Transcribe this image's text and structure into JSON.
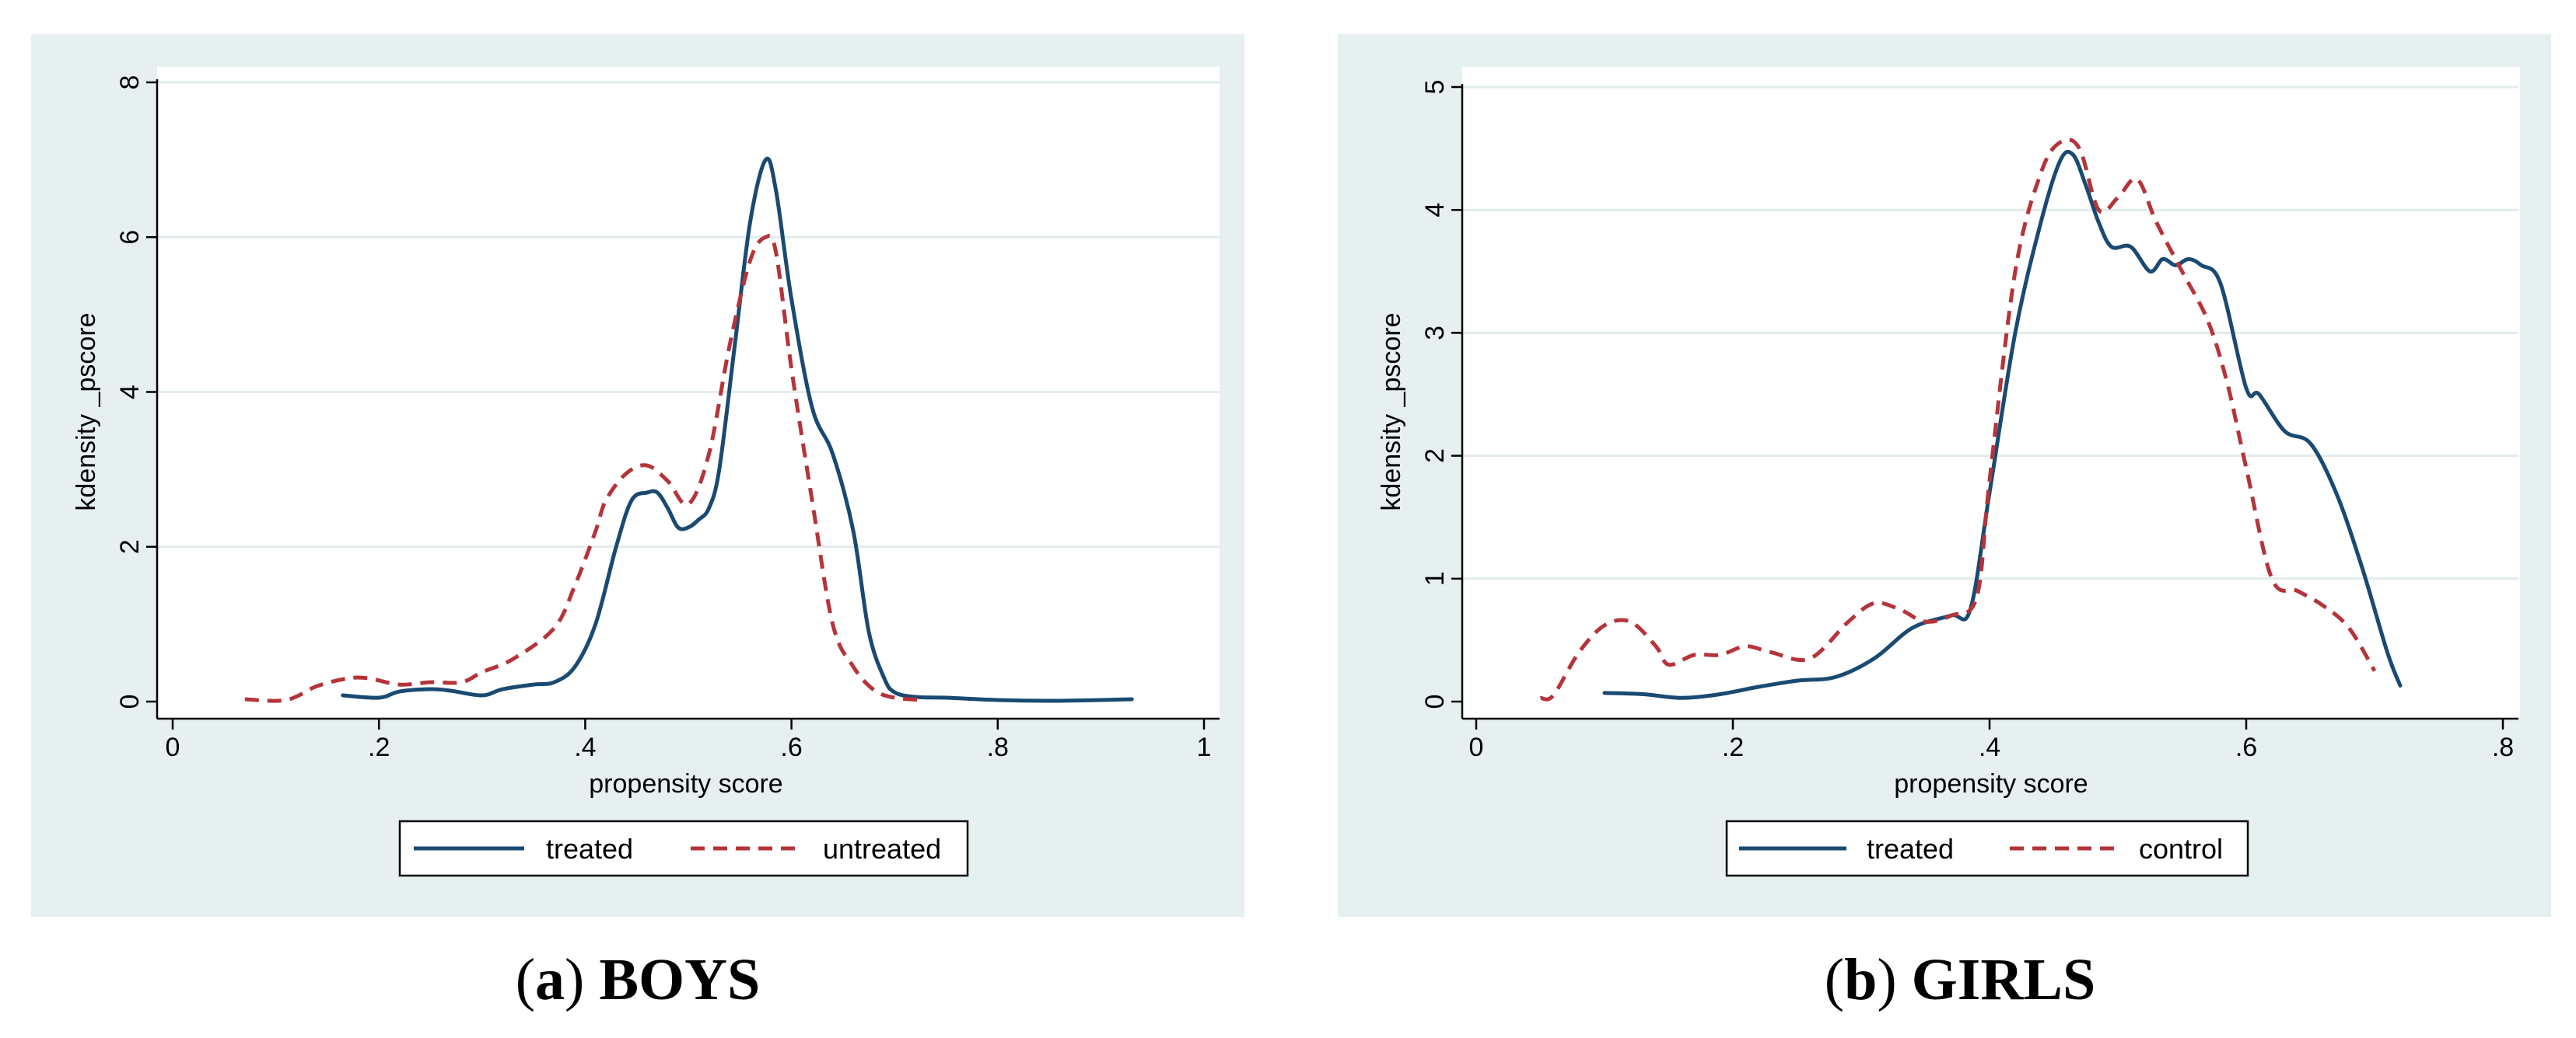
{
  "colors": {
    "treated": "#1a4a72",
    "untreated": "#b5343a",
    "panel_bg": "#e6f0f0"
  },
  "chart_data": [
    {
      "type": "line",
      "panel_label": "a",
      "caption": "BOYS",
      "xlabel": "propensity score",
      "ylabel": "kdensity _pscore",
      "xlim": [
        0,
        1
      ],
      "ylim": [
        0,
        8
      ],
      "xticks": [
        0,
        0.2,
        0.4,
        0.6,
        0.8,
        1
      ],
      "xtick_labels": [
        "0",
        ".2",
        ".4",
        ".6",
        ".8",
        "1"
      ],
      "yticks": [
        0,
        2,
        4,
        6,
        8
      ],
      "ytick_labels": [
        "0",
        "2",
        "4",
        "6",
        "8"
      ],
      "legend_position": "bottom",
      "series": [
        {
          "name": "treated",
          "style": "solid",
          "x": [
            0.165,
            0.2,
            0.22,
            0.25,
            0.27,
            0.3,
            0.32,
            0.35,
            0.37,
            0.39,
            0.41,
            0.43,
            0.445,
            0.46,
            0.47,
            0.48,
            0.49,
            0.5,
            0.51,
            0.52,
            0.53,
            0.545,
            0.56,
            0.575,
            0.585,
            0.6,
            0.62,
            0.64,
            0.66,
            0.675,
            0.69,
            0.7,
            0.72,
            0.75,
            0.8,
            0.85,
            0.9,
            0.93
          ],
          "y": [
            0.08,
            0.05,
            0.13,
            0.16,
            0.14,
            0.08,
            0.16,
            0.22,
            0.25,
            0.45,
            1.0,
            2.0,
            2.6,
            2.7,
            2.7,
            2.5,
            2.25,
            2.25,
            2.35,
            2.5,
            3.0,
            4.6,
            6.2,
            7.0,
            6.6,
            5.2,
            3.8,
            3.2,
            2.2,
            0.9,
            0.3,
            0.12,
            0.06,
            0.05,
            0.02,
            0.01,
            0.02,
            0.03
          ]
        },
        {
          "name": "untreated",
          "style": "dashed",
          "x": [
            0.07,
            0.11,
            0.14,
            0.17,
            0.19,
            0.22,
            0.25,
            0.28,
            0.3,
            0.33,
            0.37,
            0.39,
            0.41,
            0.42,
            0.44,
            0.46,
            0.48,
            0.5,
            0.52,
            0.54,
            0.56,
            0.575,
            0.585,
            0.6,
            0.62,
            0.64,
            0.66,
            0.68,
            0.7,
            0.73
          ],
          "y": [
            0.03,
            0.02,
            0.2,
            0.3,
            0.3,
            0.22,
            0.25,
            0.25,
            0.38,
            0.55,
            0.95,
            1.5,
            2.2,
            2.6,
            2.95,
            3.05,
            2.85,
            2.55,
            3.2,
            4.6,
            5.7,
            6.0,
            5.8,
            4.3,
            2.6,
            1.0,
            0.45,
            0.15,
            0.05,
            0.02
          ]
        }
      ]
    },
    {
      "type": "line",
      "panel_label": "b",
      "caption": "GIRLS",
      "xlabel": "propensity score",
      "ylabel": "kdensity _pscore",
      "xlim": [
        0,
        0.8
      ],
      "ylim": [
        0,
        5
      ],
      "xticks": [
        0,
        0.2,
        0.4,
        0.6,
        0.8
      ],
      "xtick_labels": [
        "0",
        ".2",
        ".4",
        ".6",
        ".8"
      ],
      "yticks": [
        0,
        1,
        2,
        3,
        4,
        5
      ],
      "ytick_labels": [
        "0",
        "1",
        "2",
        "3",
        "4",
        "5"
      ],
      "legend_position": "bottom",
      "series": [
        {
          "name": "treated",
          "style": "solid",
          "x": [
            0.1,
            0.13,
            0.16,
            0.19,
            0.22,
            0.25,
            0.28,
            0.31,
            0.34,
            0.37,
            0.385,
            0.4,
            0.42,
            0.44,
            0.455,
            0.465,
            0.475,
            0.485,
            0.495,
            0.51,
            0.525,
            0.535,
            0.545,
            0.555,
            0.565,
            0.58,
            0.6,
            0.61,
            0.63,
            0.65,
            0.67,
            0.69,
            0.71,
            0.72
          ],
          "y": [
            0.07,
            0.06,
            0.03,
            0.06,
            0.12,
            0.17,
            0.2,
            0.35,
            0.6,
            0.7,
            0.75,
            1.7,
            3.0,
            3.9,
            4.4,
            4.45,
            4.2,
            3.9,
            3.7,
            3.7,
            3.5,
            3.6,
            3.55,
            3.6,
            3.55,
            3.4,
            2.55,
            2.5,
            2.2,
            2.1,
            1.7,
            1.1,
            0.4,
            0.13
          ]
        },
        {
          "name": "control",
          "style": "dashed",
          "x": [
            0.05,
            0.06,
            0.08,
            0.1,
            0.12,
            0.14,
            0.15,
            0.17,
            0.19,
            0.21,
            0.23,
            0.26,
            0.29,
            0.31,
            0.33,
            0.35,
            0.37,
            0.39,
            0.4,
            0.42,
            0.44,
            0.455,
            0.47,
            0.485,
            0.5,
            0.515,
            0.53,
            0.55,
            0.57,
            0.585,
            0.6,
            0.62,
            0.64,
            0.66,
            0.68,
            0.7
          ],
          "y": [
            0.03,
            0.05,
            0.4,
            0.62,
            0.65,
            0.45,
            0.3,
            0.38,
            0.38,
            0.45,
            0.4,
            0.35,
            0.65,
            0.8,
            0.75,
            0.65,
            0.7,
            0.85,
            1.8,
            3.5,
            4.3,
            4.55,
            4.5,
            4.0,
            4.1,
            4.25,
            3.9,
            3.5,
            3.1,
            2.6,
            1.9,
            1.0,
            0.9,
            0.78,
            0.6,
            0.25
          ]
        }
      ]
    }
  ]
}
